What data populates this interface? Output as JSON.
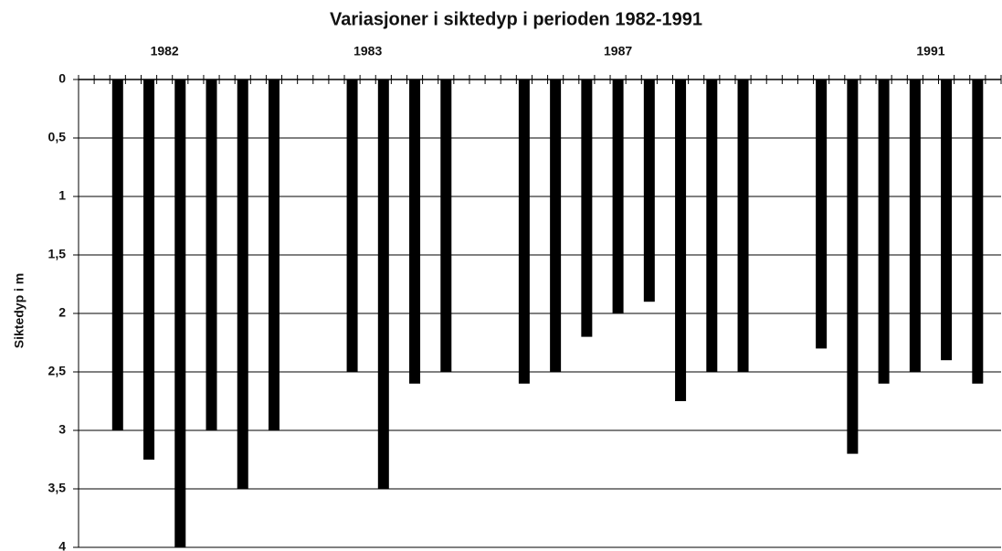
{
  "chart_data": {
    "type": "bar",
    "title": "Variasjoner i siktedyp i  perioden 1982-1991",
    "y_label": "Siktedyp i m",
    "categories": [
      null,
      null,
      null,
      null,
      null,
      "1982",
      null,
      null,
      null,
      null,
      null,
      null,
      null,
      null,
      null,
      null,
      null,
      null,
      "1983",
      null,
      null,
      null,
      null,
      null,
      null,
      null,
      null,
      null,
      null,
      null,
      null,
      null,
      null,
      null,
      "1987",
      null,
      null,
      null,
      null,
      null,
      null,
      null,
      null,
      null,
      null,
      null,
      null,
      null,
      null,
      null,
      null,
      null,
      null,
      null,
      "1991",
      null,
      null,
      null,
      null
    ],
    "values": [
      null,
      null,
      3,
      null,
      3.25,
      null,
      4,
      null,
      3,
      null,
      3.5,
      null,
      3,
      null,
      null,
      null,
      null,
      2.5,
      null,
      3.5,
      null,
      2.6,
      null,
      2.5,
      null,
      null,
      null,
      null,
      2.6,
      null,
      2.5,
      null,
      2.2,
      null,
      2,
      null,
      1.9,
      null,
      2.75,
      null,
      2.5,
      null,
      2.5,
      null,
      null,
      null,
      null,
      2.3,
      null,
      3.2,
      null,
      2.6,
      null,
      2.5,
      null,
      2.4,
      null,
      2.6,
      null
    ],
    "color": "#000000",
    "ylim": [
      4,
      0
    ],
    "yticks": [
      0,
      {
        "value": 0.5,
        "label": "0,5"
      },
      1,
      {
        "value": 1.5,
        "label": "1,5"
      },
      2,
      {
        "value": 2.5,
        "label": "2,5"
      },
      3,
      {
        "value": 3.5,
        "label": "3,5"
      },
      4
    ],
    "grid": true
  }
}
